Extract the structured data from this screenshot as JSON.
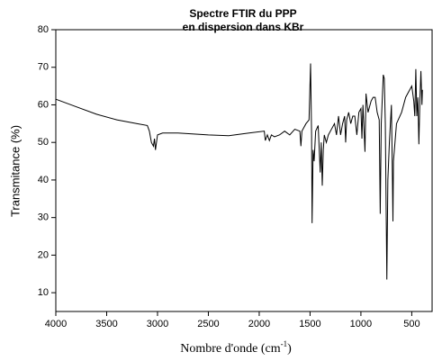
{
  "chart_data": {
    "type": "line",
    "title": [
      "Spectre FTIR du PPP",
      "en dispersion dans KBr"
    ],
    "xlabel": {
      "text": "Nombre d'onde (cm",
      "sup": "-1",
      "close": ")"
    },
    "ylabel": "Transmitance (%)",
    "xlim": [
      4000,
      300
    ],
    "ylim": [
      5,
      80
    ],
    "xticks": [
      4000,
      3500,
      3000,
      2500,
      2000,
      1500,
      1000,
      500
    ],
    "yticks": [
      10,
      20,
      30,
      40,
      50,
      60,
      70,
      80
    ],
    "series": [
      {
        "color": "#000000",
        "x": [
          4000,
          3800,
          3600,
          3400,
          3200,
          3100,
          3080,
          3060,
          3040,
          3030,
          3020,
          3000,
          2950,
          2800,
          2500,
          2300,
          2100,
          1950,
          1940,
          1920,
          1900,
          1880,
          1850,
          1800,
          1750,
          1700,
          1650,
          1600,
          1590,
          1580,
          1540,
          1510,
          1495,
          1485,
          1480,
          1470,
          1460,
          1445,
          1420,
          1400,
          1390,
          1380,
          1370,
          1360,
          1340,
          1320,
          1300,
          1260,
          1240,
          1220,
          1200,
          1180,
          1160,
          1150,
          1140,
          1120,
          1100,
          1080,
          1060,
          1040,
          1020,
          1000,
          990,
          980,
          960,
          950,
          930,
          900,
          880,
          860,
          840,
          820,
          810,
          800,
          780,
          770,
          760,
          745,
          735,
          720,
          700,
          690,
          685,
          680,
          650,
          600,
          560,
          520,
          500,
          480,
          470,
          460,
          450,
          440,
          430,
          420,
          410,
          400,
          395
        ],
        "values": [
          61.5,
          59.5,
          57.5,
          56,
          55,
          54.5,
          53,
          50,
          49,
          51,
          48,
          52,
          52.5,
          52.5,
          52,
          51.8,
          52.5,
          53,
          50.5,
          52,
          50.5,
          52,
          51.5,
          52,
          53,
          52,
          53.5,
          53,
          49,
          53,
          55,
          56,
          71,
          52,
          28.5,
          48,
          45,
          53,
          54.5,
          42,
          50,
          38.5,
          48,
          52,
          50,
          52,
          53,
          55,
          52,
          57,
          52,
          55,
          57,
          50,
          56,
          58,
          55,
          57,
          57,
          52,
          58,
          59,
          51,
          60,
          47.5,
          63,
          58,
          61,
          62,
          62,
          58,
          56,
          31,
          55,
          68,
          67,
          55,
          13.5,
          40,
          50,
          60,
          40,
          29,
          45,
          55,
          58,
          62,
          64,
          65,
          61,
          57,
          69.5,
          57,
          62,
          49.5,
          61,
          69,
          60,
          64
        ]
      }
    ]
  }
}
